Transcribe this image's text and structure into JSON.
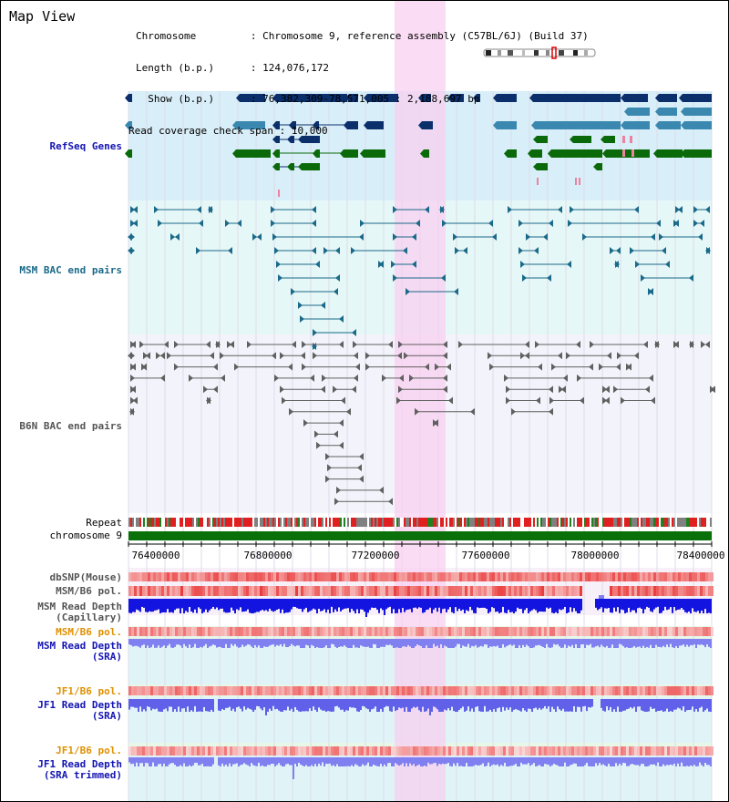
{
  "app_title": "Map View",
  "info": [
    {
      "label": "Chromosome        ",
      "value": "Chromosome 9, reference assembly (C57BL/6J) (Build 37)"
    },
    {
      "label": "Length (b.p.)     ",
      "value": "124,076,172"
    },
    {
      "label": "  Show (b.p.)     ",
      "value": "76,382,309-78,571,005 : 2,188,697 bp"
    },
    {
      "label": "Read coverage check span",
      "value": "10,000"
    }
  ],
  "tracks": {
    "refseq": "RefSeq Genes",
    "msm_bac": "MSM BAC end pairs",
    "b6n_bac": "B6N BAC end pairs",
    "repeat": "Repeat",
    "chromosome": "chromosome 9",
    "dbsnp": "dbSNP(Mouse)",
    "msm_b6_pol": "MSM/B6 pol.",
    "msm_read_depth_cap_1": "MSM Read Depth",
    "msm_read_depth_cap_2": "(Capillary)",
    "msm_b6_pol_2": "MSM/B6 pol.",
    "msm_read_depth_sra_1": "MSM Read Depth",
    "msm_read_depth_sra_2": "(SRA)",
    "jf1_b6_pol": "JF1/B6 pol.",
    "jf1_read_depth_1": "JF1 Read Depth",
    "jf1_read_depth_2": "(SRA)",
    "jf1_b6_pol_2": "JF1/B6 pol.",
    "jf1_read_depth_tr_1": "JF1 Read Depth",
    "jf1_read_depth_tr_2": "(SRA trimmed)"
  },
  "axis_ticks": [
    "76400000",
    "76800000",
    "77200000",
    "77600000",
    "78000000",
    "78400000"
  ],
  "colors": {
    "refseq_bg": "#d8eef8",
    "msm_bg": "#e6f7f7",
    "highlight": "#f8d0f0",
    "gene_dark": "#0b2f6b",
    "gene_mid": "#3a88b0",
    "gene_green": "#0a6a0a",
    "msm_line": "#1b6a8a",
    "b6n_line": "#606060",
    "chrom_green": "#0a700a",
    "depth_blue": "#1414e0",
    "depth_lblue": "#8080f0",
    "snp_red": "#f04040"
  }
}
